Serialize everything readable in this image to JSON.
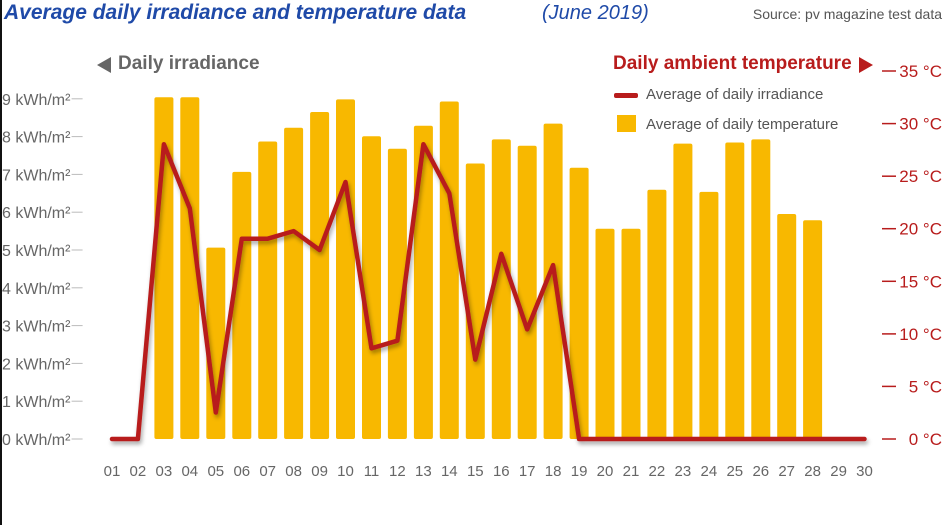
{
  "title": "Average daily irradiance and temperature data",
  "subtitle": "(June 2019)",
  "source": "Source: pv magazine test data",
  "legend": {
    "line_label": "Average of daily irradiance",
    "bar_label": "Average of daily temperature"
  },
  "colors": {
    "bar": "#f8b800",
    "line": "#b81c1c",
    "left_axis": "#666666",
    "right_axis": "#b81c1c",
    "title": "#1f4aa8"
  },
  "chart_data": {
    "type": "bar",
    "title": "Average daily irradiance and temperature data (June 2019)",
    "categories": [
      "01",
      "02",
      "03",
      "04",
      "05",
      "06",
      "07",
      "08",
      "09",
      "10",
      "11",
      "12",
      "13",
      "14",
      "15",
      "16",
      "17",
      "18",
      "19",
      "20",
      "21",
      "22",
      "23",
      "24",
      "25",
      "26",
      "27",
      "28",
      "29",
      "30"
    ],
    "series": [
      {
        "name": "Average of daily temperature",
        "type": "bar",
        "axis": "right",
        "values": [
          0,
          0,
          32.5,
          32.5,
          18.2,
          25.4,
          28.3,
          29.6,
          31.1,
          32.3,
          28.8,
          27.6,
          29.8,
          32.1,
          26.2,
          28.5,
          27.9,
          30.0,
          25.8,
          20.0,
          20.0,
          23.7,
          28.1,
          23.5,
          28.2,
          28.5,
          21.4,
          20.8,
          0,
          0
        ]
      },
      {
        "name": "Average of daily irradiance",
        "type": "line",
        "axis": "left",
        "values": [
          0,
          0,
          7.8,
          6.1,
          0.7,
          5.3,
          5.3,
          5.5,
          5.0,
          6.8,
          2.4,
          2.6,
          7.8,
          6.5,
          2.1,
          4.9,
          2.9,
          4.6,
          0,
          0,
          0,
          0,
          0,
          0,
          0,
          0,
          0,
          0,
          0,
          0
        ]
      }
    ],
    "left_axis": {
      "title": "Daily irradiance",
      "ylim": [
        0,
        9
      ],
      "tick_labels": [
        "0 kWh/m²",
        "1 kWh/m²",
        "2 kWh/m²",
        "3 kWh/m²",
        "4 kWh/m²",
        "5 kWh/m²",
        "6 kWh/m²",
        "7 kWh/m²",
        "8 kWh/m²",
        "9 kWh/m²"
      ]
    },
    "right_axis": {
      "title": "Daily ambient temperature",
      "ylim": [
        0,
        35
      ],
      "tick_labels": [
        "0 °C",
        "5 °C",
        "10 °C",
        "15 °C",
        "20 °C",
        "25 °C",
        "30 °C",
        "35 °C"
      ]
    },
    "grid": false,
    "legend_position": "top-right"
  }
}
